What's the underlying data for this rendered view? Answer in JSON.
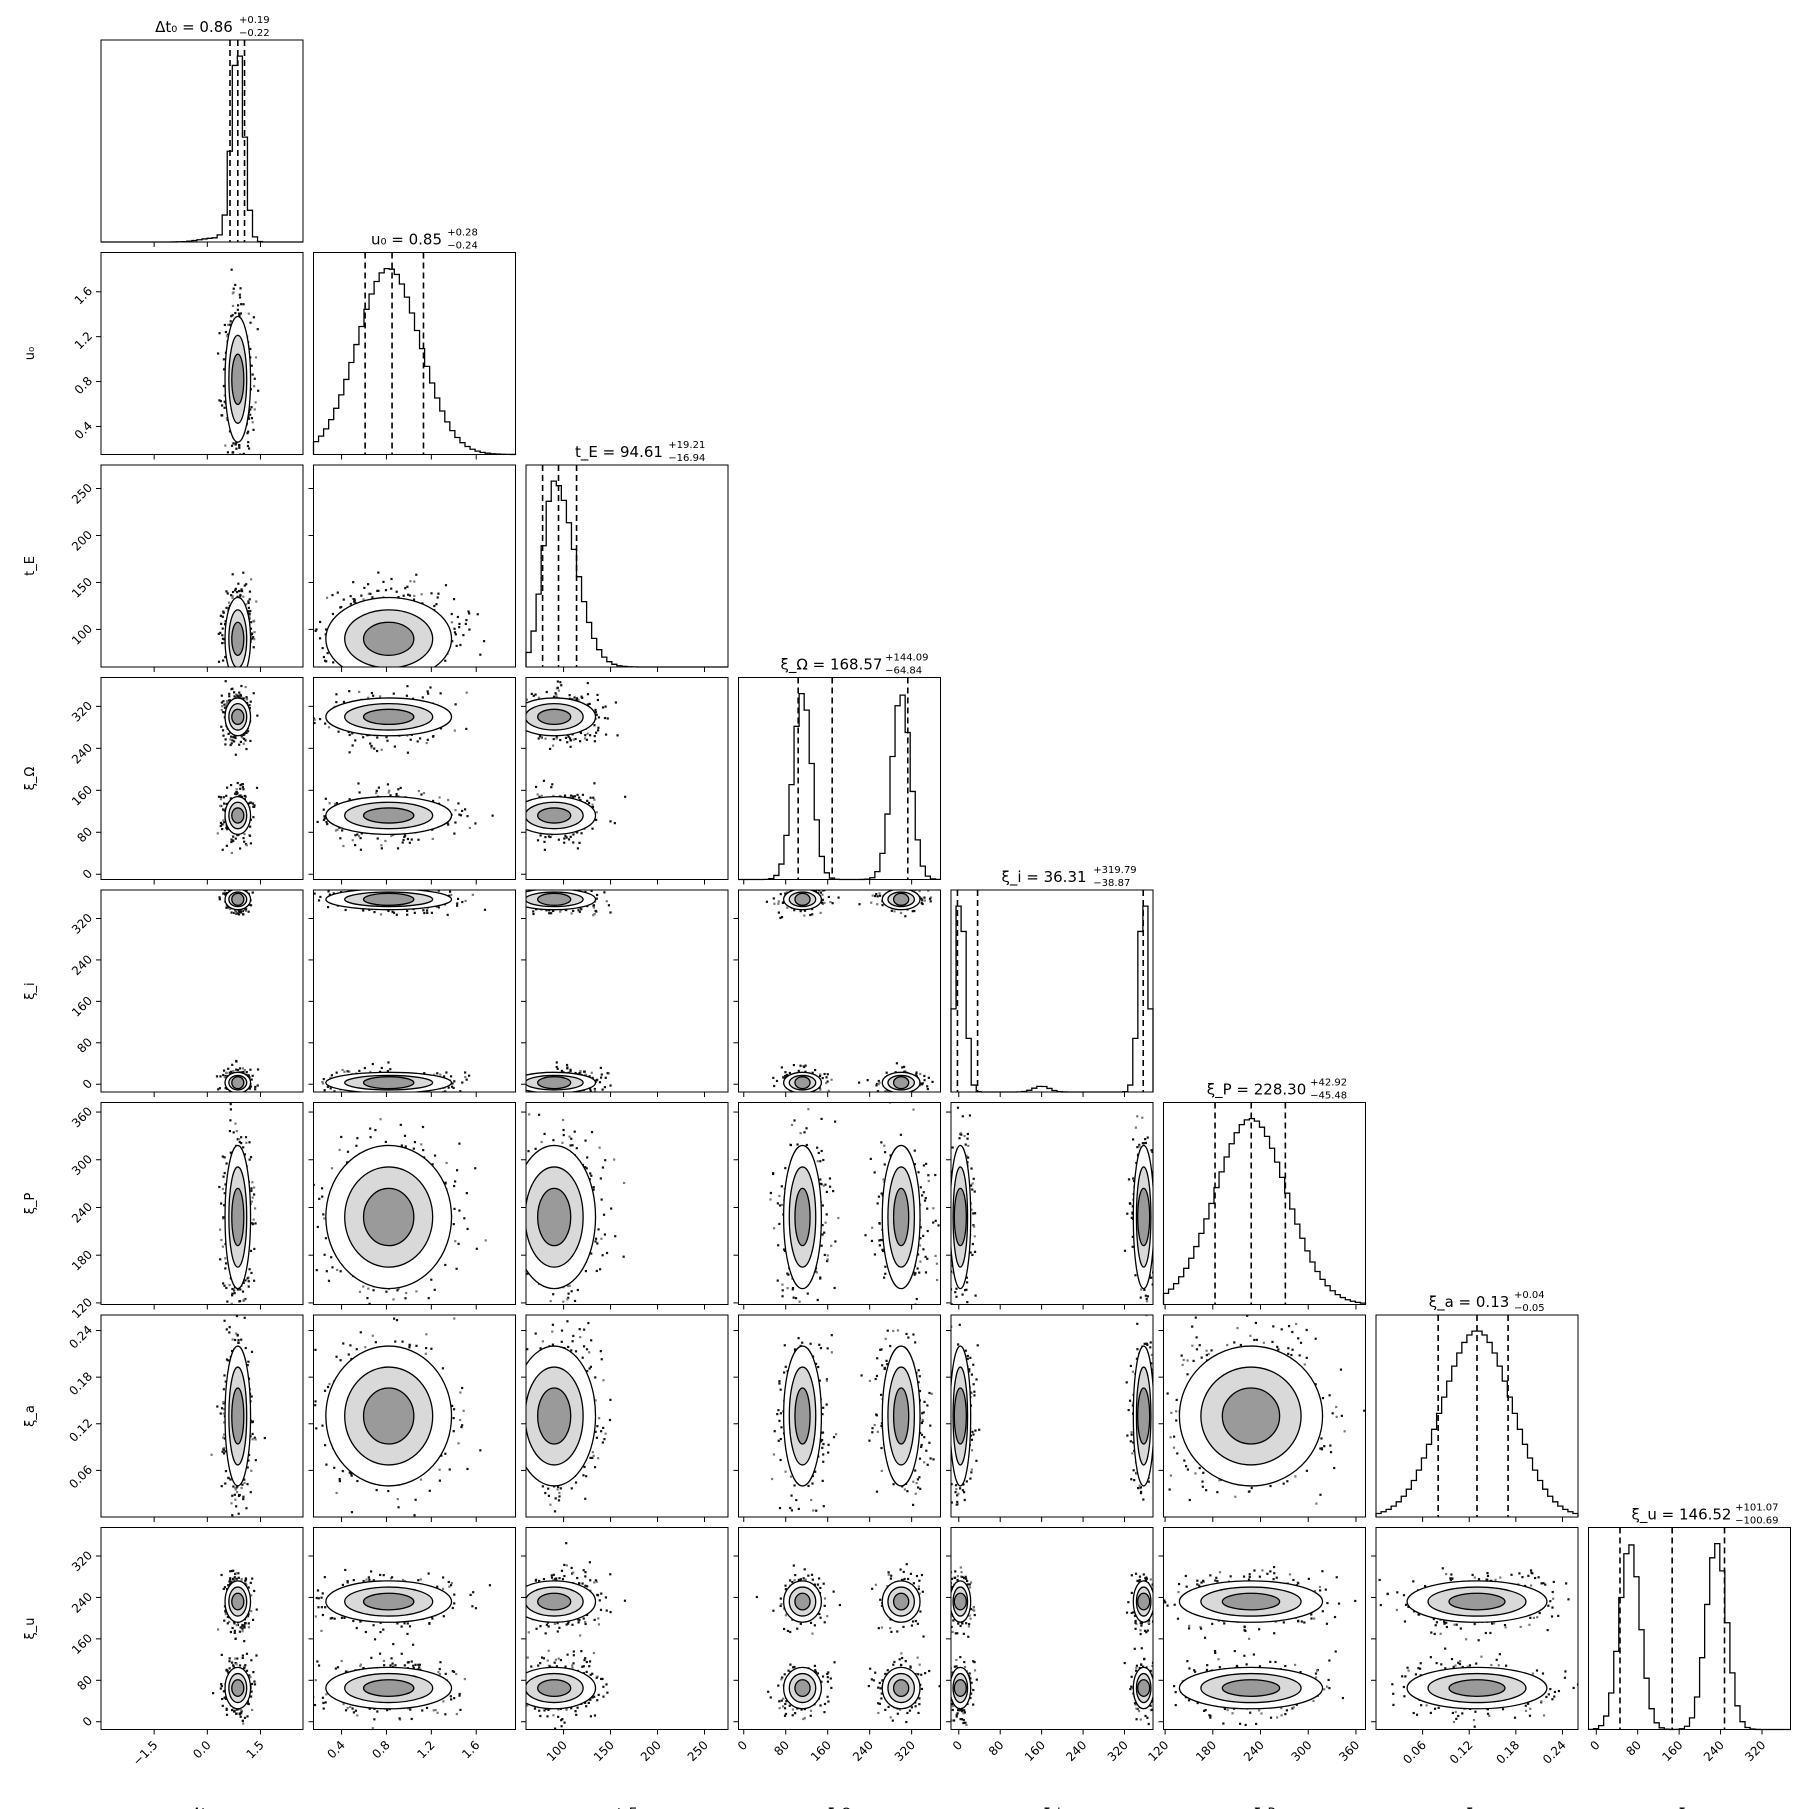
{
  "chart_data": {
    "type": "corner",
    "params": [
      {
        "key": "dt0",
        "label": "Δt₀",
        "title": "Δt₀ = 0.86",
        "median": 0.86,
        "err_plus": "+0.19",
        "err_minus": "−0.22",
        "range": [
          -3.0,
          2.7
        ],
        "ticks": [
          -1.5,
          0.0,
          1.5
        ],
        "tick_labels": [
          "−1.5",
          "0.0",
          "1.5"
        ],
        "axis_label": "Δt₀",
        "hist": {
          "kind": "peak",
          "center": 0.86,
          "width": 0.18
        },
        "quantiles": [
          0.64,
          0.86,
          1.05
        ]
      },
      {
        "key": "u0",
        "label": "u₀",
        "title": "u₀ = 0.85",
        "median": 0.85,
        "err_plus": "+0.28",
        "err_minus": "−0.24",
        "range": [
          0.15,
          1.95
        ],
        "ticks": [
          0.4,
          0.8,
          1.2,
          1.6
        ],
        "tick_labels": [
          "0.4",
          "0.8",
          "1.2",
          "1.6"
        ],
        "axis_label": "u₀",
        "hist": {
          "kind": "broad",
          "center": 0.82,
          "width": 0.28
        },
        "quantiles": [
          0.61,
          0.85,
          1.13
        ]
      },
      {
        "key": "tE",
        "label": "t_E",
        "title": "t_E = 94.61",
        "median": 94.61,
        "err_plus": "+19.21",
        "err_minus": "−16.94",
        "range": [
          60,
          275
        ],
        "ticks": [
          100,
          150,
          200,
          250
        ],
        "tick_labels": [
          "100",
          "150",
          "200",
          "250"
        ],
        "axis_label": "t_E",
        "hist": {
          "kind": "skew",
          "center": 90,
          "width": 22
        },
        "quantiles": [
          77.67,
          94.61,
          113.82
        ]
      },
      {
        "key": "xiOmega",
        "label": "ξ_Ω",
        "title": "ξ_Ω = 168.57",
        "median": 168.57,
        "err_plus": "+144.09",
        "err_minus": "−64.84",
        "range": [
          -10,
          375
        ],
        "ticks": [
          0,
          80,
          160,
          240,
          320
        ],
        "tick_labels": [
          "0",
          "80",
          "160",
          "240",
          "320"
        ],
        "axis_label": "ξ_Ω",
        "hist": {
          "kind": "bimodal",
          "peaks": [
            112,
            300
          ],
          "width": 18
        },
        "quantiles": [
          103.73,
          168.57,
          312.66
        ]
      },
      {
        "key": "xii",
        "label": "ξ_i",
        "title": "ξ_i = 36.31",
        "median": 36.31,
        "err_plus": "+319.79",
        "err_minus": "−38.87",
        "range": [
          -15,
          375
        ],
        "ticks": [
          0,
          80,
          160,
          240,
          320
        ],
        "tick_labels": [
          "0",
          "80",
          "160",
          "240",
          "320"
        ],
        "axis_label": "ξ_i",
        "hist": {
          "kind": "edges",
          "peaks": [
            3,
            357
          ],
          "width": 10
        },
        "quantiles": [
          -2.56,
          36.31,
          356.1
        ]
      },
      {
        "key": "xiP",
        "label": "ξ_P",
        "title": "ξ_P = 228.30",
        "median": 228.3,
        "err_plus": "+42.92",
        "err_minus": "−45.48",
        "range": [
          118,
          372
        ],
        "ticks": [
          120,
          180,
          240,
          300,
          360
        ],
        "tick_labels": [
          "120",
          "180",
          "240",
          "300",
          "360"
        ],
        "axis_label": "ξ_P",
        "hist": {
          "kind": "broad",
          "center": 228,
          "width": 45
        },
        "quantiles": [
          182.82,
          228.3,
          271.22
        ]
      },
      {
        "key": "xia",
        "label": "ξ_a",
        "title": "ξ_a = 0.13",
        "median": 0.13,
        "err_plus": "+0.04",
        "err_minus": "−0.05",
        "range": [
          0.0,
          0.26
        ],
        "ticks": [
          0.06,
          0.12,
          0.18,
          0.24
        ],
        "tick_labels": [
          "0.06",
          "0.12",
          "0.18",
          "0.24"
        ],
        "axis_label": "ξ_a",
        "hist": {
          "kind": "broad",
          "center": 0.13,
          "width": 0.045
        },
        "quantiles": [
          0.08,
          0.13,
          0.17
        ]
      },
      {
        "key": "xiu",
        "label": "ξ_u",
        "title": "ξ_u = 146.52",
        "median": 146.52,
        "err_plus": "+101.07",
        "err_minus": "−100.69",
        "range": [
          -15,
          375
        ],
        "ticks": [
          0,
          80,
          160,
          240,
          320
        ],
        "tick_labels": [
          "0",
          "80",
          "160",
          "240",
          "320"
        ],
        "axis_label": "ξ_u",
        "hist": {
          "kind": "bimodal",
          "peaks": [
            65,
            232
          ],
          "width": 20
        },
        "quantiles": [
          45.83,
          146.52,
          247.59
        ]
      }
    ],
    "grid": false,
    "legend": "none"
  }
}
